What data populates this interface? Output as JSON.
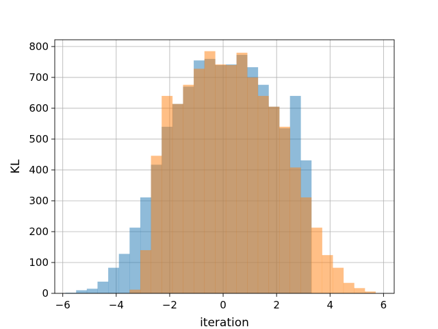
{
  "chart_data": {
    "type": "bar",
    "title": "",
    "xlabel": "iteration",
    "ylabel": "KL",
    "xlim": [
      -6.3,
      6.4
    ],
    "ylim": [
      0,
      822
    ],
    "grid": true,
    "xticks": [
      -6,
      -4,
      -2,
      0,
      2,
      4,
      6
    ],
    "xtick_labels": [
      "−6",
      "−4",
      "−2",
      "0",
      "2",
      "4",
      "6"
    ],
    "yticks": [
      0,
      100,
      200,
      300,
      400,
      500,
      600,
      700,
      800
    ],
    "ytick_labels": [
      "0",
      "100",
      "200",
      "300",
      "400",
      "500",
      "600",
      "700",
      "800"
    ],
    "series": [
      {
        "color": "#1f77b4",
        "alpha": 0.5,
        "bin_edges": [
          -5.9,
          -5.5,
          -5.1,
          -4.7,
          -4.3,
          -3.9,
          -3.5,
          -3.1,
          -2.7,
          -2.3,
          -1.9,
          -1.5,
          -1.1,
          -0.7,
          -0.3,
          0.1,
          0.5,
          0.9,
          1.3,
          1.7,
          2.1,
          2.5,
          2.9,
          3.3
        ],
        "counts": [
          2,
          10,
          15,
          38,
          83,
          128,
          213,
          311,
          417,
          540,
          614,
          670,
          755,
          760,
          740,
          742,
          773,
          733,
          676,
          605,
          535,
          640,
          431
        ]
      },
      {
        "color": "#ff7f0e",
        "alpha": 0.5,
        "bin_edges": [
          -3.5,
          -3.1,
          -2.7,
          -2.3,
          -1.9,
          -1.5,
          -1.1,
          -0.7,
          -0.3,
          0.1,
          0.5,
          0.9,
          1.3,
          1.7,
          2.1,
          2.5,
          2.9,
          3.3,
          3.7,
          4.1,
          4.5,
          4.9,
          5.3,
          5.7
        ],
        "counts": [
          12,
          140,
          446,
          640,
          614,
          676,
          728,
          785,
          742,
          740,
          780,
          700,
          640,
          605,
          540,
          408,
          311,
          213,
          124,
          83,
          34,
          17,
          6
        ]
      }
    ]
  }
}
